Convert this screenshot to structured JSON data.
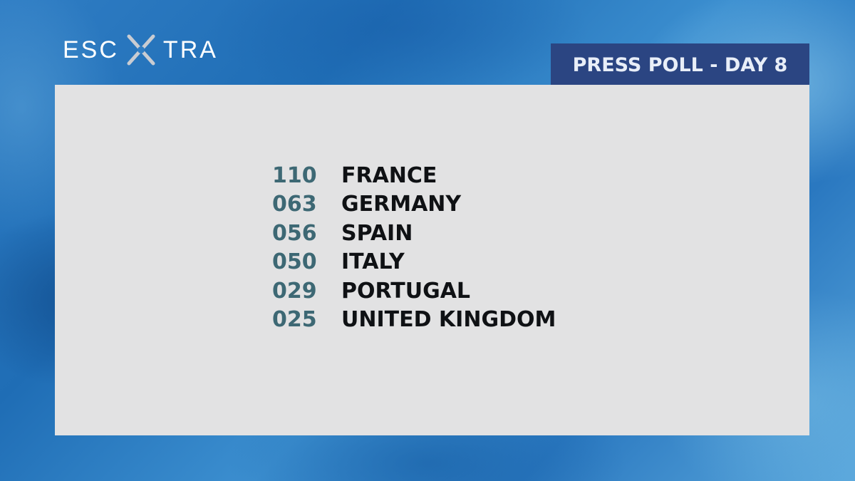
{
  "brand": {
    "logo_left": "ESC",
    "logo_right": "TRA",
    "logo_mark": "x-mark-icon"
  },
  "header": {
    "badge_text": "PRESS POLL - DAY 8"
  },
  "colors": {
    "badge_background": "#2b4582",
    "panel_background": "#e2e2e3",
    "score_text": "#3d6874",
    "country_text": "#0f1114"
  },
  "results": [
    {
      "score": "110",
      "country": "FRANCE"
    },
    {
      "score": "063",
      "country": "GERMANY"
    },
    {
      "score": "056",
      "country": "SPAIN"
    },
    {
      "score": "050",
      "country": "ITALY"
    },
    {
      "score": "029",
      "country": "PORTUGAL"
    },
    {
      "score": "025",
      "country": "UNITED KINGDOM"
    }
  ]
}
